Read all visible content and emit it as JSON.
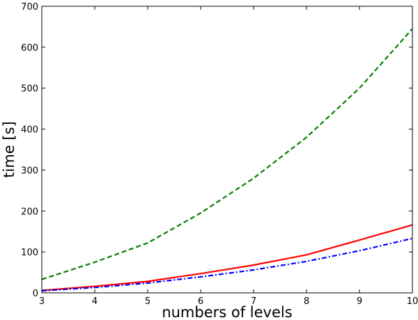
{
  "chart_data": {
    "type": "line",
    "title": "",
    "xlabel": "numbers of levels",
    "ylabel": "time [s]",
    "xlim": [
      3,
      10
    ],
    "ylim": [
      0,
      700
    ],
    "xticks": [
      "3",
      "4",
      "5",
      "6",
      "7",
      "8",
      "9",
      "10"
    ],
    "yticks": [
      "0",
      "100",
      "200",
      "300",
      "400",
      "500",
      "600",
      "700"
    ],
    "grid": false,
    "x": [
      3,
      4,
      5,
      6,
      7,
      8,
      9,
      10
    ],
    "series": [
      {
        "color": "#008000",
        "style": "dashed",
        "values": [
          33,
          75,
          122,
          195,
          280,
          380,
          500,
          645
        ]
      },
      {
        "color": "#ff0000",
        "style": "solid",
        "values": [
          6,
          16,
          28,
          47,
          68,
          93,
          129,
          166
        ]
      },
      {
        "color": "#0000ff",
        "style": "dashdot",
        "values": [
          5,
          13,
          24,
          39,
          56,
          77,
          103,
          133
        ]
      }
    ]
  }
}
